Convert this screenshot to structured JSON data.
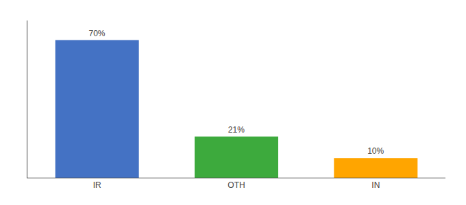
{
  "chart_data": {
    "type": "bar",
    "categories": [
      "IR",
      "OTH",
      "IN"
    ],
    "values": [
      70,
      21,
      10
    ],
    "value_labels": [
      "70%",
      "21%",
      "10%"
    ],
    "colors": [
      "#4472C4",
      "#3DAA3D",
      "#FFA500"
    ],
    "data_labels": true,
    "ylim": [
      0,
      80
    ],
    "grid": false,
    "tick_labels": "x"
  }
}
